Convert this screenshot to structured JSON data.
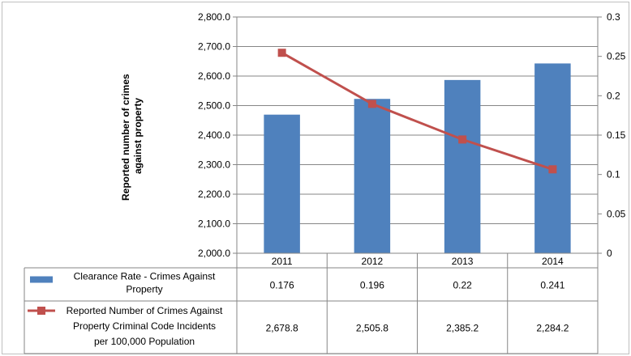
{
  "chart_data": {
    "type": "bar",
    "categories": [
      "2011",
      "2012",
      "2013",
      "2014"
    ],
    "ylabel": "Reported number of crimes against property",
    "ylim": [
      2000,
      2800
    ],
    "yticks": [
      "2,000.0",
      "2,100.0",
      "2,200.0",
      "2,300.0",
      "2,400.0",
      "2,500.0",
      "2,600.0",
      "2,700.0",
      "2,800.0"
    ],
    "y2lim": [
      0,
      0.3
    ],
    "y2ticks": [
      "0",
      "0.05",
      "0.1",
      "0.15",
      "0.2",
      "0.25",
      "0.3"
    ],
    "grid": true,
    "legend": "data table below chart",
    "series": [
      {
        "name": "Clearance Rate - Crimes Against Property",
        "name_lines": [
          "Clearance Rate - Crimes Against",
          "Property"
        ],
        "type": "bar",
        "axis": "right",
        "color": "#4f81bd",
        "values": [
          0.176,
          0.196,
          0.22,
          0.241
        ],
        "value_labels": [
          "0.176",
          "0.196",
          "0.22",
          "0.241"
        ]
      },
      {
        "name": "Reported Number of Crimes Against Property Criminal Code Incidents per 100,000 Population",
        "name_lines": [
          "Reported Number of Crimes Against",
          "Property Criminal Code Incidents",
          "per 100,000 Population"
        ],
        "type": "line",
        "axis": "left",
        "color": "#c0504d",
        "values": [
          2678.8,
          2505.8,
          2385.2,
          2284.2
        ],
        "value_labels": [
          "2,678.8",
          "2,505.8",
          "2,385.2",
          "2,284.2"
        ]
      }
    ]
  }
}
